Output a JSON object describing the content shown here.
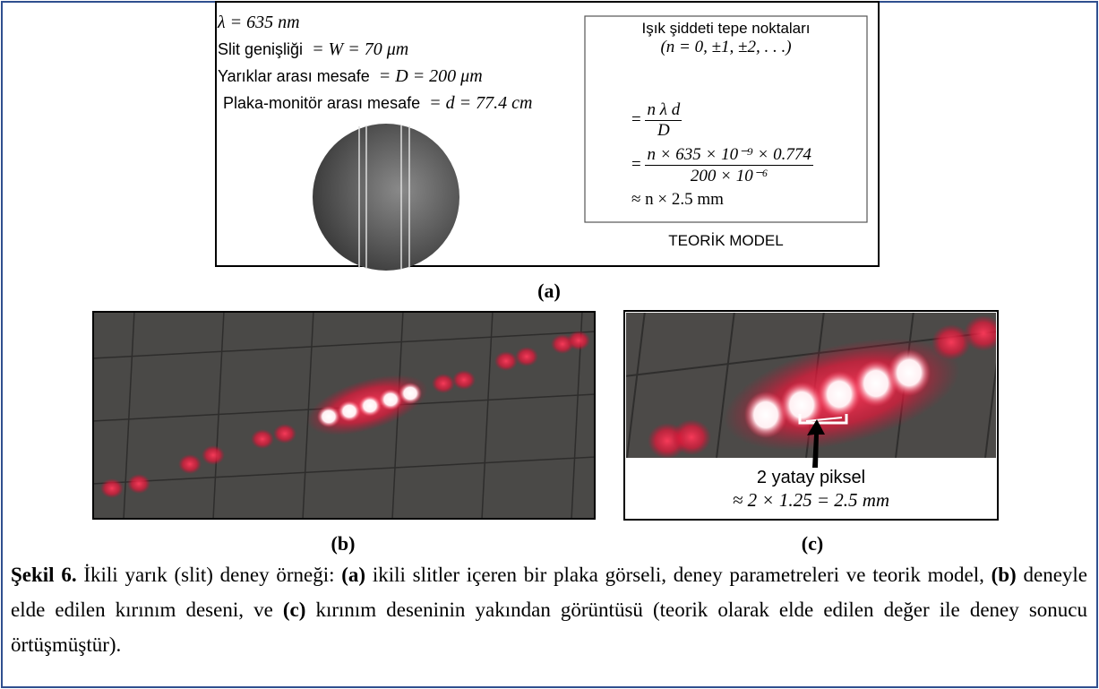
{
  "panel_a": {
    "params": [
      {
        "value": "λ = 635 nm"
      },
      {
        "label": "Slit genişliği",
        "value": "= W = 70 μm"
      },
      {
        "label": "Yarıklar arası mesafe",
        "value": "= D = 200 μm"
      },
      {
        "label": "Plaka-monitör arası mesafe",
        "value": "= d = 77.4 cm"
      }
    ],
    "model": {
      "title": "Işık şiddeti tepe noktaları",
      "subtitle": "(n = 0, ±1, ±2, . . .)",
      "steps": [
        {
          "prefix": "=",
          "numerator": "n λ d",
          "denominator": "D"
        },
        {
          "prefix": "=",
          "numerator": "n × 635 × 10⁻⁹ × 0.774",
          "denominator": "200 × 10⁻⁶"
        },
        {
          "text": "≈ n × 2.5 mm"
        }
      ],
      "footer": "TEORİK MODEL"
    },
    "label": "(a)"
  },
  "panel_b": {
    "label": "(b)"
  },
  "panel_c": {
    "label": "(c)",
    "annotation": "2 yatay piksel",
    "formula": "≈ 2 × 1.25 = 2.5 mm"
  },
  "caption": [
    {
      "text": "Şekil 6.",
      "bold": true
    },
    {
      "text": " İkili yarık (slit) deney örneği: "
    },
    {
      "text": "(a)",
      "bold": true
    },
    {
      "text": " ikili slitler içeren bir plaka görseli, deney parametreleri ve teorik model, "
    },
    {
      "text": "(b)",
      "bold": true
    },
    {
      "text": "  deneyle elde edilen kırınım deseni, ve "
    },
    {
      "text": "(c)",
      "bold": true
    },
    {
      "text": " kırınım deseninin yakından görüntüsü (teorik olarak elde edilen değer ile deney sonucu örtüşmüştür)."
    }
  ]
}
